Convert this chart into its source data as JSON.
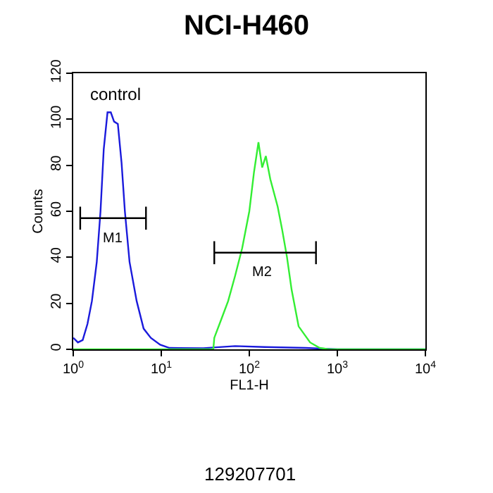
{
  "chart_data": {
    "type": "line",
    "title": "NCI-H460",
    "xlabel": "FL1-H",
    "ylabel": "Counts",
    "log": "x",
    "xlim": [
      1,
      10000
    ],
    "ylim": [
      0,
      120
    ],
    "xticks": [
      {
        "value": 1,
        "label": "10$^{0}$"
      },
      {
        "value": 10,
        "label": "10$^{1}$"
      },
      {
        "value": 100,
        "label": "10$^{2}$"
      },
      {
        "value": 1000,
        "label": "10$^{3}$"
      },
      {
        "value": 10000,
        "label": "10$^{4}$"
      }
    ],
    "yticks": [
      0,
      20,
      40,
      60,
      80,
      100,
      120
    ],
    "grid": false,
    "marker": "none",
    "line_style": "solid",
    "series": [
      {
        "color": "#1a1adc",
        "x": [
          1,
          1.13,
          1.28,
          1.45,
          1.63,
          1.85,
          2.04,
          2.22,
          2.45,
          2.67,
          2.91,
          3.21,
          3.54,
          3.86,
          4.36,
          5.25,
          6.3,
          7.6,
          9.7,
          12.4,
          30,
          69,
          150,
          437,
          1000,
          10000
        ],
        "values": [
          5,
          3,
          4,
          11,
          21,
          38,
          60,
          87,
          103,
          103,
          99,
          98,
          81,
          60,
          38,
          21,
          9,
          5,
          2,
          0.6,
          0.5,
          1.4,
          1,
          0.6,
          0,
          0
        ]
      },
      {
        "color": "#33ee33",
        "x": [
          1,
          39,
          40,
          48,
          57.5,
          69,
          83,
          100,
          113,
          127,
          140,
          154,
          173,
          210,
          236,
          268,
          302,
          363,
          490,
          630,
          800,
          10000
        ],
        "values": [
          0,
          0,
          5,
          13,
          21,
          32,
          44,
          60,
          77,
          90,
          79,
          84,
          74,
          62,
          52,
          40,
          26,
          10,
          3,
          0.6,
          0,
          0
        ]
      },
      {
        "color": "#000000",
        "x": [
          1.2,
          6.7
        ],
        "values": [
          57,
          57
        ],
        "errors": [
          5,
          5
        ]
      },
      {
        "color": "#000000",
        "x": [
          40,
          572
        ],
        "values": [
          42,
          42
        ],
        "errors": [
          5,
          5
        ]
      }
    ],
    "annotations": [
      "control",
      "M1",
      "M2",
      "129207701"
    ]
  }
}
